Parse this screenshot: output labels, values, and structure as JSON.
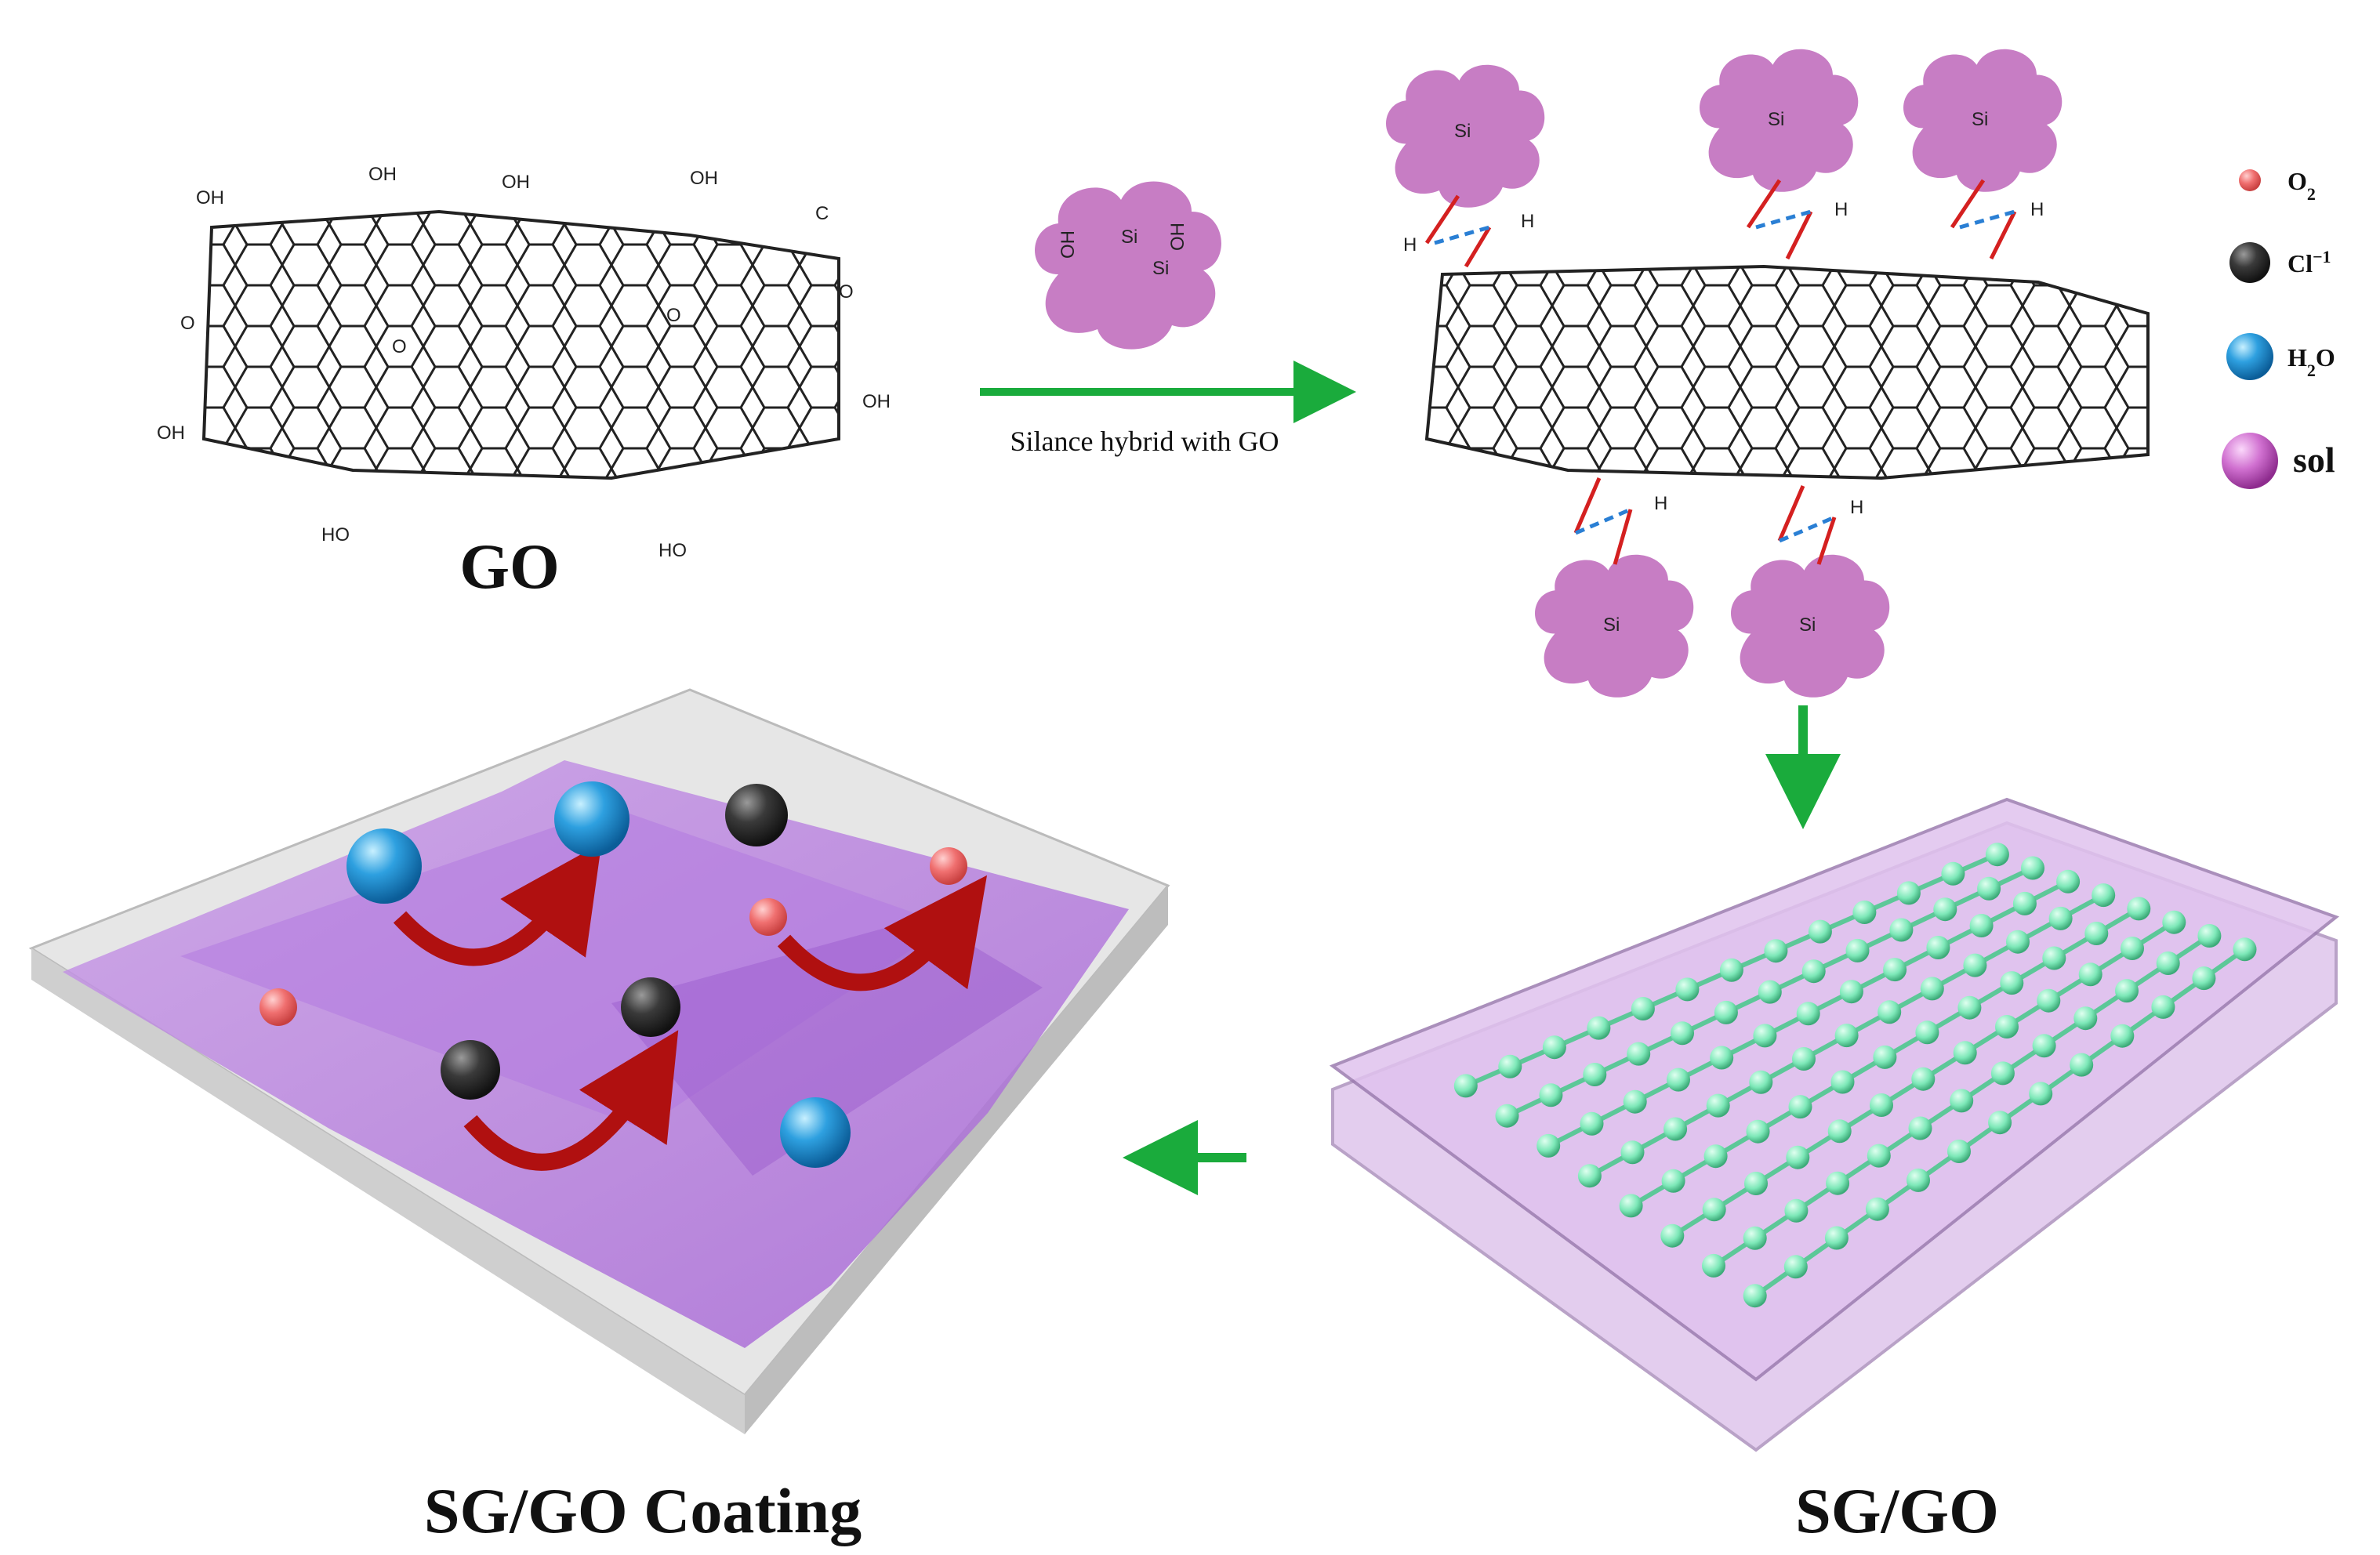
{
  "labels": {
    "go": "GO",
    "arrow_caption": "Silance hybrid with GO",
    "sggo": "SG/GO",
    "coating": "SG/GO Coating"
  },
  "legend": {
    "o2": "O",
    "o2_sub": "2",
    "cl": "Cl",
    "cl_sup": "−1",
    "h2o_h": "H",
    "h2o_sub": "2",
    "h2o_o": "O",
    "sol": "sol"
  },
  "chem": {
    "oh": "OH",
    "ho": "HO",
    "si": "Si",
    "o": "O",
    "h": "H",
    "c": "C"
  },
  "colors": {
    "sol_cloud": "#c77dc4",
    "arrow_green": "#1aab3c",
    "bond_red": "#d42020",
    "hbond_blue": "#2a7fd4",
    "o2_pink": "#f07070",
    "cl_dark": "#3a3a3a",
    "h2o_blue": "#2ea0e0",
    "sol_purple": "#d070d0",
    "node_green": "#7de8b8",
    "sheet_purple": "#b678e0",
    "curved_arrow": "#b01010"
  }
}
